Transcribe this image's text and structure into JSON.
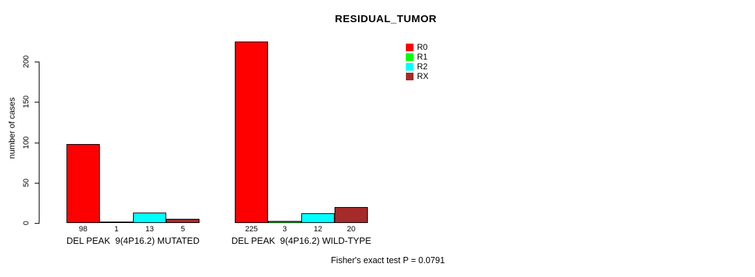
{
  "title": "RESIDUAL_TUMOR",
  "chart_data": {
    "type": "bar",
    "title": "RESIDUAL_TUMOR",
    "ylabel": "number of cases",
    "xlabel": "",
    "ylim": [
      0,
      235
    ],
    "yticks": [
      0,
      50,
      100,
      150,
      200
    ],
    "grid": false,
    "legend_position": "top-right",
    "categories": [
      "DEL PEAK  9(4P16.2) MUTATED",
      "DEL PEAK  9(4P16.2) WILD-TYPE"
    ],
    "series": [
      {
        "name": "R0",
        "color": "#ff0000",
        "values": [
          98,
          225
        ]
      },
      {
        "name": "R1",
        "color": "#00ff00",
        "values": [
          1,
          3
        ]
      },
      {
        "name": "R2",
        "color": "#00ffff",
        "values": [
          13,
          12
        ]
      },
      {
        "name": "RX",
        "color": "#a52a2a",
        "values": [
          5,
          20
        ]
      }
    ],
    "bar_value_labels": [
      [
        98,
        1,
        13,
        5
      ],
      [
        225,
        3,
        12,
        20
      ]
    ],
    "annotation": "Fisher's exact test P = 0.0791"
  },
  "colors": {
    "background": "#ffffff",
    "axis": "#000000",
    "text": "#000000",
    "r0": "#ff0000",
    "r1": "#00ff00",
    "r2": "#00ffff",
    "rx": "#a52a2a"
  }
}
